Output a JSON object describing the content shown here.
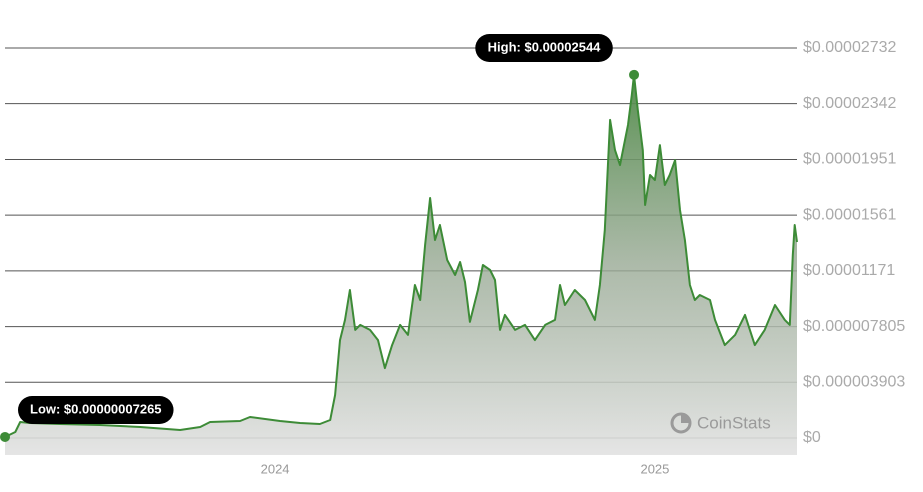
{
  "chart_data": {
    "type": "line",
    "x": [
      2023.289,
      2023.316,
      2023.329,
      2023.355,
      2023.434,
      2023.539,
      2023.645,
      2023.75,
      2023.803,
      2023.829,
      2023.908,
      2023.934,
      2024.013,
      2024.066,
      2024.118,
      2024.145,
      2024.158,
      2024.171,
      2024.184,
      2024.197,
      2024.211,
      2024.224,
      2024.25,
      2024.271,
      2024.289,
      2024.308,
      2024.329,
      2024.35,
      2024.368,
      2024.382,
      2024.395,
      2024.408,
      2024.421,
      2024.434,
      2024.453,
      2024.474,
      2024.487,
      2024.5,
      2024.513,
      2024.534,
      2024.547,
      2024.566,
      2024.579,
      2024.592,
      2024.605,
      2024.632,
      2024.658,
      2024.684,
      2024.711,
      2024.737,
      2024.75,
      2024.763,
      2024.789,
      2024.816,
      2024.842,
      2024.855,
      2024.868,
      2024.882,
      2024.895,
      2024.908,
      2024.929,
      2024.939,
      2024.945,
      2024.955,
      2024.968,
      2024.974,
      2024.987,
      2025.0,
      2025.013,
      2025.026,
      2025.039,
      2025.053,
      2025.066,
      2025.079,
      2025.092,
      2025.105,
      2025.118,
      2025.145,
      2025.158,
      2025.184,
      2025.211,
      2025.237,
      2025.263,
      2025.289,
      2025.316,
      2025.342,
      2025.355,
      2025.363,
      2025.368,
      2025.374
    ],
    "series": [
      {
        "color": "#3d8b37",
        "values": [
          7.265e-08,
          4.2e-07,
          1.12e-06,
          1.05e-06,
          9.8e-07,
          9.1e-07,
          7.7e-07,
          5.6e-07,
          7.7e-07,
          1.12e-06,
          1.19e-06,
          1.47e-06,
          1.19e-06,
          1.05e-06,
          9.8e-07,
          1.26e-06,
          3.01e-06,
          6.86e-06,
          8.27e-06,
          1.037e-05,
          7.57e-06,
          7.92e-06,
          7.57e-06,
          6.86e-06,
          4.9e-06,
          6.51e-06,
          7.92e-06,
          7.22e-06,
          1.072e-05,
          9.67e-06,
          1.352e-05,
          1.681e-05,
          1.387e-05,
          1.492e-05,
          1.247e-05,
          1.142e-05,
          1.233e-05,
          1.093e-05,
          8.13e-06,
          1.037e-05,
          1.212e-05,
          1.177e-05,
          1.107e-05,
          7.57e-06,
          8.62e-06,
          7.57e-06,
          7.92e-06,
          6.86e-06,
          7.92e-06,
          8.27e-06,
          1.072e-05,
          9.32e-06,
          1.037e-05,
          9.67e-06,
          8.27e-06,
          1.072e-05,
          1.457e-05,
          2.228e-05,
          2.017e-05,
          1.912e-05,
          2.193e-05,
          2.403e-05,
          2.544e-05,
          2.298e-05,
          2.017e-05,
          1.632e-05,
          1.842e-05,
          1.807e-05,
          2.052e-05,
          1.772e-05,
          1.842e-05,
          1.947e-05,
          1.597e-05,
          1.387e-05,
          1.072e-05,
          9.67e-06,
          1.002e-05,
          9.67e-06,
          8.27e-06,
          6.51e-06,
          7.22e-06,
          8.62e-06,
          6.51e-06,
          7.57e-06,
          9.32e-06,
          8.27e-06,
          7.92e-06,
          1.282e-05,
          1.492e-05,
          1.373e-05
        ]
      }
    ],
    "xlim": [
      2023.289,
      2025.374
    ],
    "xticks": [
      2024,
      2025
    ],
    "ylim": [
      0,
      2.732e-05
    ],
    "yticks": [
      {
        "value": 0,
        "label": "$0"
      },
      {
        "value": 3.903e-06,
        "label": "$0.000003903"
      },
      {
        "value": 7.805e-06,
        "label": "$0.000007805"
      },
      {
        "value": 1.171e-05,
        "label": "$0.00001171"
      },
      {
        "value": 1.561e-05,
        "label": "$0.00001561"
      },
      {
        "value": 1.951e-05,
        "label": "$0.00001951"
      },
      {
        "value": 2.342e-05,
        "label": "$0.00002342"
      },
      {
        "value": 2.732e-05,
        "label": "$0.00002732"
      }
    ],
    "grid": true,
    "annotations": [
      {
        "label": "High: $0.00002544",
        "value": 2.544e-05,
        "x": 2024.945
      },
      {
        "label": "Low: $0.00000007265",
        "value": 7.265e-08,
        "x": 2023.289
      }
    ],
    "watermark": "CoinStats"
  }
}
